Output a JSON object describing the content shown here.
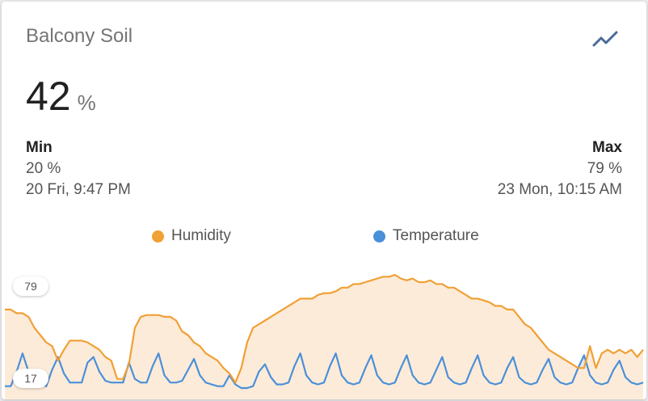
{
  "card": {
    "title": "Balcony Soil",
    "trend_icon": "trending-up-icon",
    "value": "42",
    "unit": "%",
    "min": {
      "label": "Min",
      "value": "20 %",
      "time": "20 Fri, 9:47 PM"
    },
    "max": {
      "label": "Max",
      "value": "79 %",
      "time": "23 Mon, 10:15 AM"
    },
    "colors": {
      "humidity": "#f0a035",
      "temperature": "#4a90d9",
      "accent": "#4a6a9a"
    }
  },
  "chart_data": {
    "type": "line",
    "legend_placement": "top-center",
    "grid": false,
    "y_badges": {
      "max": "79",
      "min": "17"
    },
    "series": [
      {
        "name": "Humidity",
        "color": "#f0a035",
        "y": [
          60,
          60,
          58,
          58,
          56,
          50,
          46,
          42,
          40,
          32,
          38,
          43,
          43,
          43,
          42,
          40,
          38,
          34,
          32,
          22,
          22,
          30,
          50,
          56,
          57,
          57,
          57,
          56,
          56,
          54,
          48,
          46,
          42,
          40,
          36,
          34,
          32,
          28,
          25,
          20,
          28,
          42,
          50,
          52,
          54,
          56,
          58,
          60,
          62,
          64,
          66,
          66,
          66,
          68,
          69,
          69,
          70,
          72,
          72,
          74,
          74,
          75,
          76,
          77,
          78,
          78,
          79,
          77,
          76,
          77,
          75,
          75,
          76,
          74,
          74,
          72,
          72,
          70,
          68,
          66,
          66,
          65,
          64,
          62,
          62,
          60,
          60,
          56,
          52,
          50,
          46,
          42,
          38,
          36,
          34,
          32,
          30,
          28,
          28,
          40,
          28,
          36,
          38,
          36,
          38,
          36,
          38,
          34,
          38
        ]
      },
      {
        "name": "Temperature",
        "color": "#4a90d9",
        "y": [
          18,
          18,
          26,
          36,
          26,
          20,
          19,
          18,
          27,
          34,
          25,
          20,
          20,
          20,
          31,
          34,
          26,
          21,
          20,
          20,
          20,
          31,
          22,
          20,
          20,
          29,
          36,
          24,
          20,
          20,
          21,
          27,
          33,
          24,
          20,
          19,
          18,
          18,
          24,
          19,
          17,
          17,
          18,
          26,
          30,
          23,
          19,
          19,
          20,
          29,
          36,
          24,
          20,
          19,
          20,
          29,
          36,
          24,
          20,
          19,
          20,
          28,
          35,
          24,
          20,
          19,
          20,
          28,
          35,
          24,
          20,
          19,
          20,
          27,
          34,
          23,
          20,
          19,
          20,
          28,
          35,
          24,
          20,
          19,
          20,
          28,
          34,
          23,
          20,
          19,
          20,
          27,
          33,
          23,
          20,
          19,
          20,
          28,
          35,
          24,
          20,
          19,
          20,
          27,
          32,
          23,
          20,
          19,
          20
        ]
      }
    ]
  }
}
